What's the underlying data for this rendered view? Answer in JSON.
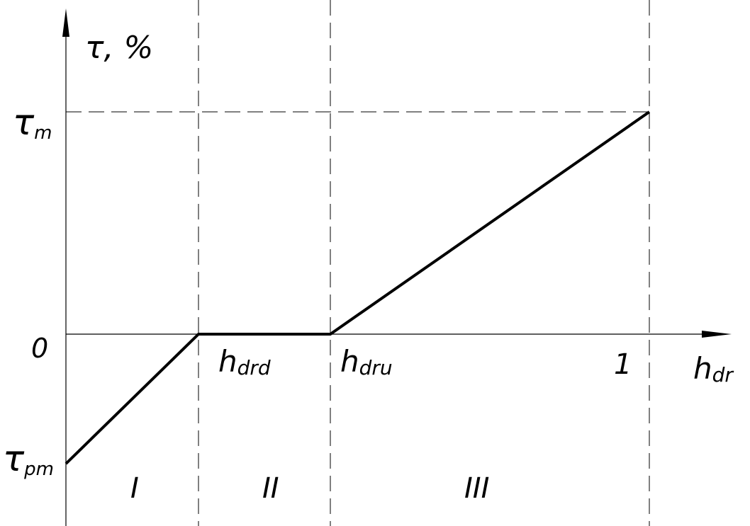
{
  "diagram": {
    "y_axis_label": "τ, %",
    "x_axis_label": {
      "main": "h",
      "sub": "dr"
    },
    "y_ticks": {
      "tau_m": {
        "main": "τ",
        "sub": "m"
      },
      "zero": "0",
      "tau_pm": {
        "main": "τ",
        "sub": "pm"
      }
    },
    "x_ticks": {
      "h_drd": {
        "main": "h",
        "sub": "drd"
      },
      "h_dru": {
        "main": "h",
        "sub": "dru"
      },
      "one": "1"
    },
    "regions": [
      "I",
      "II",
      "III"
    ],
    "curve_points": [
      {
        "x": "0",
        "y": "τpm"
      },
      {
        "x": "hdrd",
        "y": "0"
      },
      {
        "x": "hdru",
        "y": "0"
      },
      {
        "x": "1",
        "y": "τm"
      }
    ],
    "colors": {
      "line": "#000000",
      "background": "#ffffff"
    }
  }
}
